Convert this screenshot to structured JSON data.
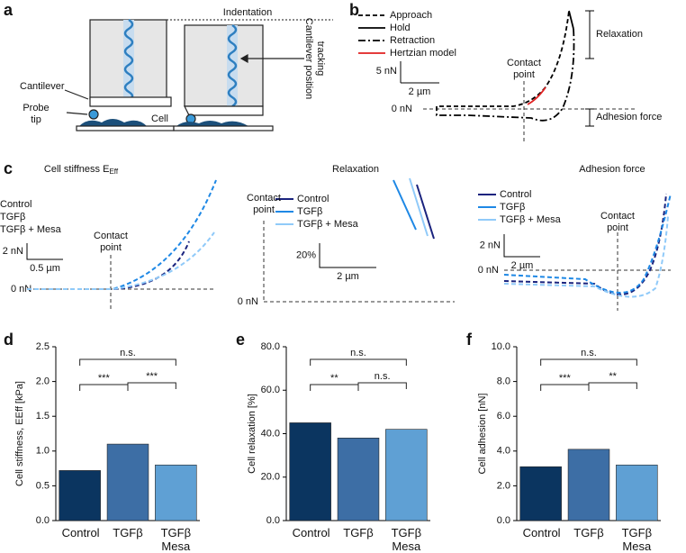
{
  "panel_labels": [
    "a",
    "b",
    "c",
    "d",
    "e",
    "f"
  ],
  "panel_a": {
    "indentation": "Indentation",
    "tracking": [
      "Cantilever position",
      "tracking"
    ],
    "cantilever": "Cantilever",
    "probe_tip": [
      "Probe",
      "tip"
    ],
    "cell": "Cell"
  },
  "panel_b": {
    "legend": [
      "Approach",
      "Hold",
      "Retraction",
      "Hertzian model"
    ],
    "contact_point": [
      "Contact",
      "point"
    ],
    "scale_y": "5 nN",
    "scale_x": "2 µm",
    "zero": "0 nN",
    "relaxation": "Relaxation",
    "adhesion": "Adhesion force"
  },
  "panel_c": [
    {
      "title": "Cell stiffness E",
      "title_sub": "Eff",
      "legend": [
        "Control",
        "TGFβ",
        "TGFβ + Mesa"
      ],
      "contact_point": [
        "Contact",
        "point"
      ],
      "scale_y": "2 nN",
      "scale_x": "0.5 µm",
      "zero": "0 nN"
    },
    {
      "title": "Relaxation",
      "legend": [
        "Control",
        "TGFβ",
        "TGFβ + Mesa"
      ],
      "contact_point": [
        "Contact",
        "point"
      ],
      "scale_y": "20%",
      "scale_x": "2 µm",
      "zero": "0 nN"
    },
    {
      "title": "Adhesion force",
      "legend": [
        "Control",
        "TGFβ",
        "TGFβ + Mesa"
      ],
      "contact_point": [
        "Contact",
        "point"
      ],
      "scale_y": "2 nN",
      "scale_x": "2 µm",
      "zero": "0 nN"
    }
  ],
  "chart_data": [
    {
      "type": "bar",
      "ylabel": "Cell stiffness, EEff [kPa]",
      "categories": [
        "Control",
        "TGFβ",
        "TGFβ Mesa"
      ],
      "values": [
        0.72,
        1.1,
        0.8
      ],
      "colors": [
        "#0b3560",
        "#3d6ea5",
        "#5fa0d4"
      ],
      "ylim": [
        0,
        2.5
      ],
      "yticks": [
        {
          "value": 0,
          "label": "0.0"
        },
        0.5,
        {
          "value": 1,
          "label": "1.0"
        },
        1.5,
        {
          "value": 2,
          "label": "2.0"
        },
        2.5
      ],
      "significance": [
        "***",
        "***",
        "n.s."
      ]
    },
    {
      "type": "bar",
      "ylabel": "Cell relaxation [%]",
      "categories": [
        "Control",
        "TGFβ",
        "TGFβ Mesa"
      ],
      "values": [
        45,
        38,
        42
      ],
      "colors": [
        "#0b3560",
        "#3d6ea5",
        "#5fa0d4"
      ],
      "ylim": [
        0,
        80
      ],
      "yticks": [
        {
          "value": 0,
          "label": "0.0"
        },
        {
          "value": 20,
          "label": "20.0"
        },
        {
          "value": 40,
          "label": "40.0"
        },
        {
          "value": 60,
          "label": "60.0"
        },
        {
          "value": 80,
          "label": "80.0"
        }
      ],
      "significance": [
        "**",
        "n.s.",
        "n.s."
      ]
    },
    {
      "type": "bar",
      "ylabel": "Cell adhesion [nN]",
      "categories": [
        "Control",
        "TGFβ",
        "TGFβ Mesa"
      ],
      "values": [
        3.1,
        4.1,
        3.2
      ],
      "colors": [
        "#0b3560",
        "#3d6ea5",
        "#5fa0d4"
      ],
      "ylim": [
        0,
        10
      ],
      "yticks": [
        {
          "value": 0,
          "label": "0.0"
        },
        {
          "value": 2,
          "label": "2.0"
        },
        {
          "value": 4,
          "label": "4.0"
        },
        {
          "value": 6,
          "label": "6.0"
        },
        {
          "value": 8,
          "label": "8.0"
        },
        {
          "value": 10,
          "label": "10.0"
        }
      ],
      "significance": [
        "***",
        "**",
        "n.s."
      ]
    }
  ]
}
